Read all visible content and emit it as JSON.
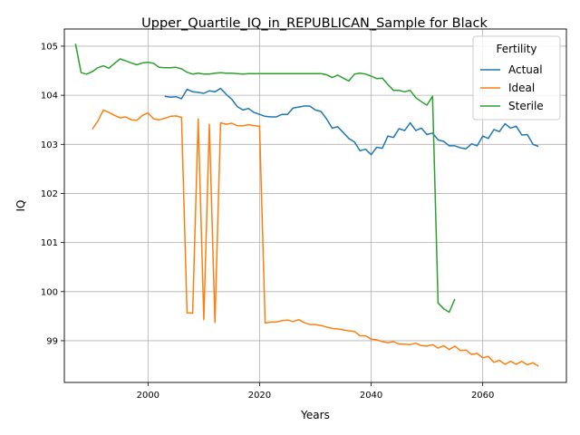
{
  "chart_data": {
    "type": "line",
    "title": "Upper_Quartile_IQ_in_REPUBLICAN_Sample for Black",
    "xlabel": "Years",
    "ylabel": "IQ",
    "xlim": [
      1985,
      2075
    ],
    "ylim": [
      98.15,
      105.35
    ],
    "xticks": [
      2000,
      2020,
      2040,
      2060
    ],
    "yticks": [
      99,
      100,
      101,
      102,
      103,
      104,
      105
    ],
    "grid": true,
    "legend": {
      "title": "Fertility",
      "placement": "top-right"
    },
    "series": [
      {
        "name": "Actual",
        "color": "#1f77b4",
        "points": [
          [
            2003,
            103.98
          ],
          [
            2004,
            103.96
          ],
          [
            2005,
            103.97
          ],
          [
            2006,
            103.93
          ],
          [
            2007,
            104.12
          ],
          [
            2008,
            104.07
          ],
          [
            2009,
            104.06
          ],
          [
            2010,
            104.04
          ],
          [
            2011,
            104.09
          ],
          [
            2012,
            104.07
          ],
          [
            2013,
            104.14
          ],
          [
            2014,
            104.02
          ],
          [
            2015,
            103.92
          ],
          [
            2016,
            103.77
          ],
          [
            2017,
            103.7
          ],
          [
            2018,
            103.73
          ],
          [
            2019,
            103.65
          ],
          [
            2020,
            103.61
          ],
          [
            2021,
            103.57
          ],
          [
            2022,
            103.56
          ],
          [
            2023,
            103.56
          ],
          [
            2024,
            103.61
          ],
          [
            2025,
            103.61
          ],
          [
            2026,
            103.74
          ],
          [
            2027,
            103.76
          ],
          [
            2028,
            103.78
          ],
          [
            2029,
            103.78
          ],
          [
            2030,
            103.7
          ],
          [
            2031,
            103.67
          ],
          [
            2032,
            103.52
          ],
          [
            2033,
            103.33
          ],
          [
            2034,
            103.36
          ],
          [
            2035,
            103.24
          ],
          [
            2036,
            103.12
          ],
          [
            2037,
            103.05
          ],
          [
            2038,
            102.87
          ],
          [
            2039,
            102.9
          ],
          [
            2040,
            102.79
          ],
          [
            2041,
            102.94
          ],
          [
            2042,
            102.92
          ],
          [
            2043,
            103.17
          ],
          [
            2044,
            103.14
          ],
          [
            2045,
            103.32
          ],
          [
            2046,
            103.28
          ],
          [
            2047,
            103.44
          ],
          [
            2048,
            103.28
          ],
          [
            2049,
            103.33
          ],
          [
            2050,
            103.2
          ],
          [
            2051,
            103.23
          ],
          [
            2052,
            103.09
          ],
          [
            2053,
            103.06
          ],
          [
            2054,
            102.97
          ],
          [
            2055,
            102.97
          ],
          [
            2056,
            102.93
          ],
          [
            2057,
            102.91
          ],
          [
            2058,
            103.01
          ],
          [
            2059,
            102.97
          ],
          [
            2060,
            103.17
          ],
          [
            2061,
            103.12
          ],
          [
            2062,
            103.3
          ],
          [
            2063,
            103.26
          ],
          [
            2064,
            103.42
          ],
          [
            2065,
            103.33
          ],
          [
            2066,
            103.37
          ],
          [
            2067,
            103.19
          ],
          [
            2068,
            103.2
          ],
          [
            2069,
            103.0
          ],
          [
            2070,
            102.96
          ]
        ]
      },
      {
        "name": "Ideal",
        "color": "#ff7f0e",
        "points": [
          [
            1990,
            103.31
          ],
          [
            1991,
            103.47
          ],
          [
            1992,
            103.7
          ],
          [
            1993,
            103.65
          ],
          [
            1994,
            103.59
          ],
          [
            1995,
            103.54
          ],
          [
            1996,
            103.56
          ],
          [
            1997,
            103.5
          ],
          [
            1998,
            103.49
          ],
          [
            1999,
            103.59
          ],
          [
            2000,
            103.64
          ],
          [
            2001,
            103.52
          ],
          [
            2002,
            103.5
          ],
          [
            2003,
            103.53
          ],
          [
            2004,
            103.57
          ],
          [
            2005,
            103.58
          ],
          [
            2006,
            103.55
          ],
          [
            2007,
            99.57
          ],
          [
            2008,
            99.56
          ],
          [
            2009,
            103.52
          ],
          [
            2010,
            99.43
          ],
          [
            2011,
            103.41
          ],
          [
            2012,
            99.37
          ],
          [
            2013,
            103.44
          ],
          [
            2014,
            103.41
          ],
          [
            2015,
            103.43
          ],
          [
            2016,
            103.38
          ],
          [
            2017,
            103.38
          ],
          [
            2018,
            103.4
          ],
          [
            2019,
            103.38
          ],
          [
            2020,
            103.37
          ],
          [
            2021,
            99.36
          ],
          [
            2022,
            99.38
          ],
          [
            2023,
            99.38
          ],
          [
            2024,
            99.41
          ],
          [
            2025,
            99.42
          ],
          [
            2026,
            99.39
          ],
          [
            2027,
            99.43
          ],
          [
            2028,
            99.37
          ],
          [
            2029,
            99.33
          ],
          [
            2030,
            99.33
          ],
          [
            2031,
            99.31
          ],
          [
            2032,
            99.28
          ],
          [
            2033,
            99.25
          ],
          [
            2034,
            99.24
          ],
          [
            2035,
            99.22
          ],
          [
            2036,
            99.2
          ],
          [
            2037,
            99.19
          ],
          [
            2038,
            99.1
          ],
          [
            2039,
            99.1
          ],
          [
            2040,
            99.03
          ],
          [
            2041,
            99.02
          ],
          [
            2042,
            98.98
          ],
          [
            2043,
            98.96
          ],
          [
            2044,
            98.98
          ],
          [
            2045,
            98.93
          ],
          [
            2046,
            98.93
          ],
          [
            2047,
            98.92
          ],
          [
            2048,
            98.95
          ],
          [
            2049,
            98.9
          ],
          [
            2050,
            98.89
          ],
          [
            2051,
            98.92
          ],
          [
            2052,
            98.85
          ],
          [
            2053,
            98.9
          ],
          [
            2054,
            98.82
          ],
          [
            2055,
            98.89
          ],
          [
            2056,
            98.8
          ],
          [
            2057,
            98.81
          ],
          [
            2058,
            98.72
          ],
          [
            2059,
            98.74
          ],
          [
            2060,
            98.65
          ],
          [
            2061,
            98.68
          ],
          [
            2062,
            98.56
          ],
          [
            2063,
            98.6
          ],
          [
            2064,
            98.52
          ],
          [
            2065,
            98.58
          ],
          [
            2066,
            98.52
          ],
          [
            2067,
            98.58
          ],
          [
            2068,
            98.51
          ],
          [
            2069,
            98.55
          ],
          [
            2070,
            98.48
          ]
        ]
      },
      {
        "name": "Sterile",
        "color": "#2ca02c",
        "points": [
          [
            1987,
            105.05
          ],
          [
            1988,
            104.46
          ],
          [
            1989,
            104.43
          ],
          [
            1990,
            104.48
          ],
          [
            1991,
            104.56
          ],
          [
            1992,
            104.6
          ],
          [
            1993,
            104.55
          ],
          [
            1994,
            104.65
          ],
          [
            1995,
            104.74
          ],
          [
            1996,
            104.7
          ],
          [
            1997,
            104.66
          ],
          [
            1998,
            104.62
          ],
          [
            1999,
            104.66
          ],
          [
            2000,
            104.67
          ],
          [
            2001,
            104.65
          ],
          [
            2002,
            104.57
          ],
          [
            2003,
            104.56
          ],
          [
            2004,
            104.56
          ],
          [
            2005,
            104.57
          ],
          [
            2006,
            104.54
          ],
          [
            2007,
            104.47
          ],
          [
            2008,
            104.43
          ],
          [
            2009,
            104.45
          ],
          [
            2010,
            104.43
          ],
          [
            2011,
            104.43
          ],
          [
            2012,
            104.45
          ],
          [
            2013,
            104.46
          ],
          [
            2014,
            104.45
          ],
          [
            2015,
            104.45
          ],
          [
            2016,
            104.44
          ],
          [
            2017,
            104.43
          ],
          [
            2018,
            104.44
          ],
          [
            2019,
            104.44
          ],
          [
            2020,
            104.44
          ],
          [
            2021,
            104.44
          ],
          [
            2022,
            104.44
          ],
          [
            2023,
            104.44
          ],
          [
            2024,
            104.44
          ],
          [
            2025,
            104.44
          ],
          [
            2026,
            104.44
          ],
          [
            2027,
            104.44
          ],
          [
            2028,
            104.44
          ],
          [
            2029,
            104.44
          ],
          [
            2030,
            104.44
          ],
          [
            2031,
            104.44
          ],
          [
            2032,
            104.42
          ],
          [
            2033,
            104.36
          ],
          [
            2034,
            104.41
          ],
          [
            2035,
            104.35
          ],
          [
            2036,
            104.29
          ],
          [
            2037,
            104.43
          ],
          [
            2038,
            104.45
          ],
          [
            2039,
            104.43
          ],
          [
            2040,
            104.39
          ],
          [
            2041,
            104.34
          ],
          [
            2042,
            104.35
          ],
          [
            2043,
            104.22
          ],
          [
            2044,
            104.1
          ],
          [
            2045,
            104.1
          ],
          [
            2046,
            104.07
          ],
          [
            2047,
            104.1
          ],
          [
            2048,
            103.95
          ],
          [
            2049,
            103.87
          ],
          [
            2050,
            103.8
          ],
          [
            2051,
            103.98
          ],
          [
            2052,
            99.77
          ],
          [
            2053,
            99.65
          ],
          [
            2054,
            99.58
          ],
          [
            2055,
            99.85
          ]
        ]
      }
    ]
  }
}
